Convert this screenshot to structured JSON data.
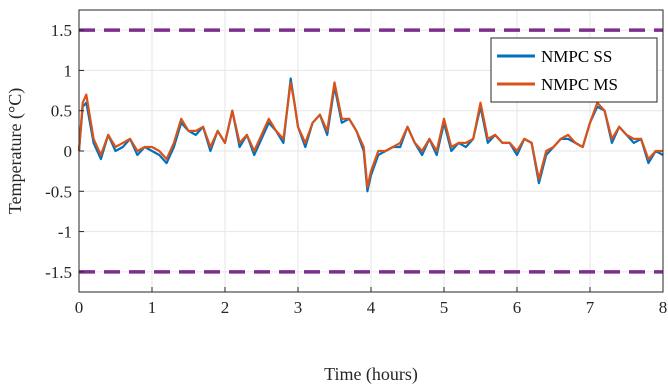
{
  "chart_data": {
    "type": "line",
    "xlabel": "Time (hours)",
    "ylabel": "Temperature (°C)",
    "xlim": [
      0,
      8
    ],
    "ylim": [
      -1.75,
      1.75
    ],
    "xticks": [
      0,
      1,
      2,
      3,
      4,
      5,
      6,
      7,
      8
    ],
    "xtick_labels": [
      "0",
      "1",
      "2",
      "3",
      "4",
      "5",
      "6",
      "7",
      "8"
    ],
    "yticks": [
      -1.5,
      -1,
      -0.5,
      0,
      0.5,
      1,
      1.5
    ],
    "ytick_labels": [
      "-1.5",
      "-1",
      "-0.5",
      "0",
      "0.5",
      "1",
      "1.5"
    ],
    "grid": true,
    "legend_position": "top-right",
    "constraints": [
      {
        "y": 1.5,
        "color": "#7E2F8E",
        "style": "dashed"
      },
      {
        "y": -1.5,
        "color": "#7E2F8E",
        "style": "dashed"
      }
    ],
    "series": [
      {
        "name": "NMPC SS",
        "color": "#0072BD",
        "x": [
          0,
          0.05,
          0.1,
          0.2,
          0.3,
          0.4,
          0.5,
          0.6,
          0.7,
          0.8,
          0.9,
          1.0,
          1.1,
          1.2,
          1.3,
          1.4,
          1.5,
          1.6,
          1.7,
          1.8,
          1.9,
          2.0,
          2.1,
          2.2,
          2.3,
          2.4,
          2.5,
          2.6,
          2.7,
          2.8,
          2.9,
          2.95,
          3.0,
          3.1,
          3.2,
          3.3,
          3.4,
          3.5,
          3.6,
          3.7,
          3.8,
          3.9,
          3.95,
          4.0,
          4.1,
          4.2,
          4.3,
          4.4,
          4.5,
          4.6,
          4.7,
          4.8,
          4.9,
          5.0,
          5.1,
          5.2,
          5.3,
          5.4,
          5.5,
          5.6,
          5.7,
          5.8,
          5.9,
          6.0,
          6.1,
          6.2,
          6.3,
          6.4,
          6.5,
          6.6,
          6.7,
          6.8,
          6.9,
          7.0,
          7.1,
          7.2,
          7.3,
          7.4,
          7.5,
          7.6,
          7.7,
          7.8,
          7.9,
          8.0
        ],
        "y": [
          0.0,
          0.55,
          0.6,
          0.1,
          -0.1,
          0.2,
          0.0,
          0.05,
          0.15,
          -0.05,
          0.05,
          0.0,
          -0.05,
          -0.15,
          0.05,
          0.35,
          0.25,
          0.2,
          0.3,
          0.0,
          0.25,
          0.1,
          0.5,
          0.05,
          0.2,
          -0.05,
          0.15,
          0.35,
          0.25,
          0.1,
          0.9,
          0.6,
          0.3,
          0.05,
          0.35,
          0.45,
          0.2,
          0.8,
          0.35,
          0.4,
          0.25,
          0.0,
          -0.5,
          -0.3,
          -0.05,
          0.0,
          0.05,
          0.05,
          0.3,
          0.1,
          -0.05,
          0.15,
          -0.05,
          0.35,
          0.0,
          0.1,
          0.05,
          0.15,
          0.55,
          0.1,
          0.2,
          0.1,
          0.1,
          -0.05,
          0.15,
          0.1,
          -0.4,
          -0.05,
          0.05,
          0.15,
          0.15,
          0.1,
          0.05,
          0.35,
          0.55,
          0.5,
          0.1,
          0.3,
          0.2,
          0.1,
          0.15,
          -0.15,
          0.0,
          -0.05
        ]
      },
      {
        "name": "NMPC MS",
        "color": "#D95319",
        "x": [
          0,
          0.05,
          0.1,
          0.2,
          0.3,
          0.4,
          0.5,
          0.6,
          0.7,
          0.8,
          0.9,
          1.0,
          1.1,
          1.2,
          1.3,
          1.4,
          1.5,
          1.6,
          1.7,
          1.8,
          1.9,
          2.0,
          2.1,
          2.2,
          2.3,
          2.4,
          2.5,
          2.6,
          2.7,
          2.8,
          2.9,
          2.95,
          3.0,
          3.1,
          3.2,
          3.3,
          3.4,
          3.5,
          3.6,
          3.7,
          3.8,
          3.9,
          3.95,
          4.0,
          4.1,
          4.2,
          4.3,
          4.4,
          4.5,
          4.6,
          4.7,
          4.8,
          4.9,
          5.0,
          5.1,
          5.2,
          5.3,
          5.4,
          5.5,
          5.6,
          5.7,
          5.8,
          5.9,
          6.0,
          6.1,
          6.2,
          6.3,
          6.4,
          6.5,
          6.6,
          6.7,
          6.8,
          6.9,
          7.0,
          7.1,
          7.2,
          7.3,
          7.4,
          7.5,
          7.6,
          7.7,
          7.8,
          7.9,
          8.0
        ],
        "y": [
          0.0,
          0.6,
          0.7,
          0.15,
          -0.05,
          0.2,
          0.05,
          0.1,
          0.15,
          0.0,
          0.05,
          0.05,
          0.0,
          -0.1,
          0.1,
          0.4,
          0.25,
          0.25,
          0.3,
          0.05,
          0.25,
          0.1,
          0.5,
          0.1,
          0.2,
          0.0,
          0.2,
          0.4,
          0.25,
          0.15,
          0.85,
          0.6,
          0.3,
          0.1,
          0.35,
          0.45,
          0.25,
          0.85,
          0.4,
          0.4,
          0.25,
          0.05,
          -0.45,
          -0.25,
          0.0,
          0.0,
          0.05,
          0.1,
          0.3,
          0.1,
          0.0,
          0.15,
          0.0,
          0.4,
          0.05,
          0.1,
          0.1,
          0.15,
          0.6,
          0.15,
          0.2,
          0.1,
          0.1,
          0.0,
          0.15,
          0.1,
          -0.35,
          0.0,
          0.05,
          0.15,
          0.2,
          0.1,
          0.05,
          0.35,
          0.6,
          0.5,
          0.15,
          0.3,
          0.2,
          0.15,
          0.15,
          -0.1,
          0.0,
          0.0
        ]
      }
    ]
  }
}
